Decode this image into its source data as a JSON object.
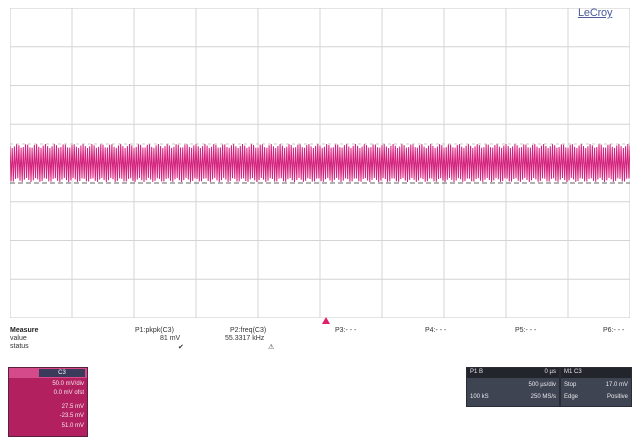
{
  "logo": "LeCroy",
  "colors": {
    "trace": "#d4207c",
    "grid": "#c8c8c8",
    "grid_dash": "#666666",
    "trace_panel": "#b22060",
    "panel_bg": "#3f4452"
  },
  "measure": {
    "labels": [
      "Measure",
      "value",
      "status"
    ],
    "params": [
      {
        "header": "P1:pkpk(C3)",
        "value": "81 mV",
        "status": "✔"
      },
      {
        "header": "P2:freq(C3)",
        "value": "55.3317 kHz",
        "status": "⚠"
      },
      {
        "header": "P3:- - -",
        "value": "",
        "status": ""
      },
      {
        "header": "P4:- - -",
        "value": "",
        "status": ""
      },
      {
        "header": "P5:- - -",
        "value": "",
        "status": ""
      },
      {
        "header": "P6:- - -",
        "value": "",
        "status": ""
      }
    ]
  },
  "channel_descriptor": {
    "tag": "C3",
    "lines": [
      "50.0 mV/div",
      "0.0 mV ofst",
      "27.5 mV",
      "-23.5 mV",
      "51.0 mV"
    ]
  },
  "trigger_descriptor": {
    "left_cells": [
      "P1 B",
      "",
      "100 kS",
      "0 µs",
      "500 µs/div",
      "250 MS/s"
    ],
    "right_cells": [
      "M1 C3",
      "",
      "Stop",
      "17.0 mV",
      "Edge",
      "Positive"
    ]
  },
  "waveform": {
    "frequency_khz": 55.3317,
    "pkpk_mv": 81
  }
}
